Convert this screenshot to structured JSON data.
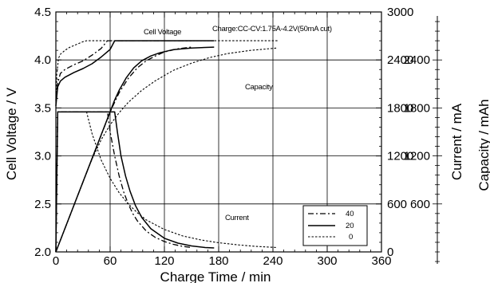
{
  "chart_data": {
    "type": "line",
    "title": "",
    "xlabel": "Charge Time  /  min",
    "ylabel_left": "Cell Voltage  /  V",
    "ylabel_right_inner": "Current  /  mA",
    "ylabel_right_outer": "Capacity  /  mAh",
    "xlim": [
      0,
      360
    ],
    "ylim_voltage": [
      2.0,
      4.5
    ],
    "ylim_current": [
      0,
      3000
    ],
    "ylim_capacity": [
      0,
      3000
    ],
    "x_ticks": [
      "0",
      "60",
      "120",
      "180",
      "240",
      "300",
      "360"
    ],
    "y_left_ticks": [
      "2.0",
      "2.5",
      "3.0",
      "3.5",
      "4.0",
      "4.5"
    ],
    "y_right_ticks": [
      "0",
      "600",
      "1200",
      "1800",
      "2400",
      "3000"
    ],
    "y_capacity_ticks": [
      "600",
      "1200",
      "1800",
      "2400"
    ],
    "grid": true,
    "legend_placement": "right-middle",
    "legend": [
      {
        "label": "40",
        "dash": "dashdot"
      },
      {
        "label": "20",
        "dash": "solid"
      },
      {
        "label": "0",
        "dash": "dotted"
      }
    ],
    "annotations": {
      "cell_voltage": "Cell Voltage",
      "charge_condition": "Charge:CC-CV:1.75A-4.2V(50mA  cut)",
      "capacity": "Capacity",
      "current": "Current"
    },
    "series": [
      {
        "name": "40",
        "dash": "dashdot",
        "quantity": "voltage",
        "x": [
          0,
          2,
          5,
          10,
          20,
          30,
          40,
          50,
          57,
          62,
          80,
          120,
          150
        ],
        "y": [
          3.58,
          3.76,
          3.86,
          3.9,
          3.95,
          3.99,
          4.05,
          4.12,
          4.2,
          4.2,
          4.2,
          4.2,
          4.2
        ]
      },
      {
        "name": "20",
        "dash": "solid",
        "quantity": "voltage",
        "x": [
          0,
          2,
          5,
          10,
          20,
          30,
          40,
          50,
          60,
          65,
          90,
          130,
          175
        ],
        "y": [
          3.52,
          3.72,
          3.78,
          3.82,
          3.87,
          3.91,
          3.96,
          4.03,
          4.11,
          4.2,
          4.2,
          4.2,
          4.2
        ]
      },
      {
        "name": "0",
        "dash": "dotted",
        "quantity": "voltage",
        "x": [
          0,
          1,
          3,
          5,
          10,
          15,
          20,
          25,
          30,
          34,
          60,
          120,
          180,
          245
        ],
        "y": [
          3.5,
          3.85,
          4.02,
          4.06,
          4.1,
          4.13,
          4.15,
          4.17,
          4.19,
          4.2,
          4.2,
          4.2,
          4.2,
          4.2
        ]
      },
      {
        "name": "40",
        "dash": "dashdot",
        "quantity": "current",
        "x": [
          0,
          2,
          57,
          60,
          65,
          70,
          75,
          80,
          85,
          90,
          100,
          110,
          120,
          130,
          140,
          150
        ],
        "y": [
          0,
          1750,
          1750,
          1500,
          1200,
          950,
          750,
          600,
          480,
          390,
          260,
          180,
          130,
          95,
          70,
          55
        ]
      },
      {
        "name": "20",
        "dash": "solid",
        "quantity": "current",
        "x": [
          0,
          2,
          65,
          68,
          72,
          77,
          82,
          88,
          95,
          105,
          120,
          135,
          150,
          165,
          175
        ],
        "y": [
          0,
          1750,
          1750,
          1500,
          1200,
          950,
          760,
          580,
          430,
          290,
          170,
          110,
          75,
          55,
          50
        ]
      },
      {
        "name": "0",
        "dash": "dotted",
        "quantity": "current",
        "x": [
          0,
          2,
          34,
          40,
          50,
          60,
          70,
          80,
          90,
          100,
          120,
          140,
          160,
          180,
          200,
          220,
          245
        ],
        "y": [
          0,
          1750,
          1750,
          1480,
          1150,
          920,
          740,
          600,
          490,
          400,
          280,
          200,
          150,
          115,
          90,
          70,
          55
        ]
      },
      {
        "name": "40",
        "dash": "dashdot",
        "quantity": "capacity",
        "x": [
          0,
          57,
          62,
          70,
          80,
          90,
          100,
          110,
          120,
          135,
          150
        ],
        "y": [
          0,
          1660,
          1800,
          1990,
          2170,
          2300,
          2390,
          2450,
          2500,
          2540,
          2560
        ]
      },
      {
        "name": "20",
        "dash": "solid",
        "quantity": "capacity",
        "x": [
          0,
          65,
          70,
          78,
          86,
          95,
          105,
          115,
          130,
          150,
          175
        ],
        "y": [
          0,
          1900,
          2020,
          2180,
          2300,
          2390,
          2450,
          2490,
          2530,
          2550,
          2560
        ]
      },
      {
        "name": "0",
        "dash": "dotted",
        "quantity": "capacity",
        "x": [
          0,
          34,
          40,
          50,
          60,
          70,
          80,
          95,
          110,
          130,
          150,
          170,
          190,
          215,
          245
        ],
        "y": [
          0,
          990,
          1160,
          1400,
          1590,
          1740,
          1870,
          2020,
          2140,
          2270,
          2360,
          2430,
          2480,
          2520,
          2550
        ]
      }
    ]
  }
}
